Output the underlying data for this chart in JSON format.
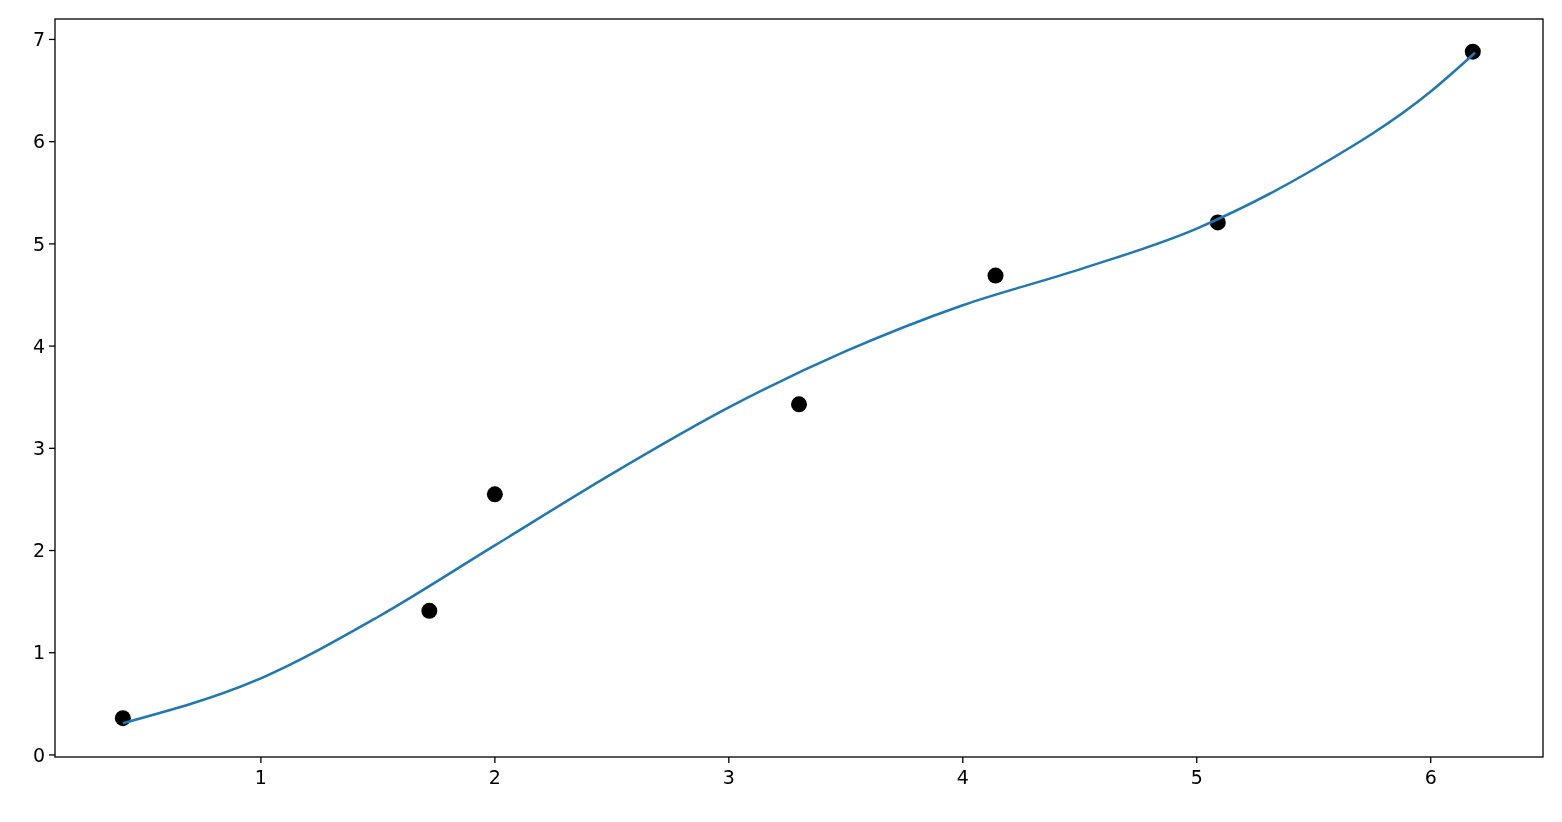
{
  "chart_data": {
    "type": "scatter",
    "xlim": [
      0.12,
      6.48
    ],
    "ylim": [
      -0.02,
      7.2
    ],
    "xticks": [
      1,
      2,
      3,
      4,
      5,
      6
    ],
    "yticks": [
      0,
      1,
      2,
      3,
      4,
      5,
      6,
      7
    ],
    "grid": false,
    "series": [
      {
        "color": "#000000",
        "marker": "circle",
        "x": [
          0.41,
          1.72,
          2.0,
          3.3,
          4.14,
          5.09,
          6.18
        ],
        "values": [
          0.36,
          1.41,
          2.55,
          3.43,
          4.69,
          5.21,
          6.88
        ]
      },
      {
        "type": "line",
        "color": "#1f77b4",
        "line_style": "solid",
        "marker": "none",
        "x": [
          0.41,
          1.0,
          1.5,
          2.0,
          2.5,
          3.0,
          3.5,
          4.0,
          4.5,
          5.0,
          5.5,
          6.0,
          6.19
        ],
        "values": [
          0.31,
          0.75,
          1.35,
          2.05,
          2.75,
          3.4,
          3.95,
          4.4,
          4.75,
          5.15,
          5.73,
          6.49,
          6.87
        ]
      }
    ]
  }
}
